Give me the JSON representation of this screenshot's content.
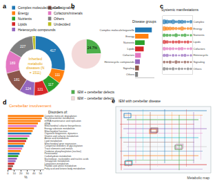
{
  "chart_data": [
    {
      "type": "pie",
      "title": "Inherited metabolic diseases (N = 1511)",
      "annotations": [
        "a"
      ],
      "categories": [
        "Complex molecule/organelle",
        "Energy",
        "Nutrients",
        "Lipids",
        "Heterocyclic compounds",
        "Cell signaling",
        "Cofactors/minerals",
        "Others",
        "Undecided"
      ],
      "values": [
        417,
        111,
        117,
        121,
        124,
        181,
        189,
        227,
        24
      ],
      "colors": [
        "#1f77b4",
        "#ff7f0e",
        "#2ca02c",
        "#d62728",
        "#9467bd",
        "#8c564b",
        "#e377c2",
        "#7f7f7f",
        "#bcbd22"
      ],
      "data_labels": true,
      "legend": "top"
    },
    {
      "type": "pie",
      "annotations": [
        "b"
      ],
      "categories": [
        "IEM + cerebellar defects",
        "IEM − cerebellar defects"
      ],
      "values": [
        24.7,
        75.3
      ],
      "value_labels": [
        "24.7%",
        null
      ],
      "colors": [
        "#4daf4a",
        "#f3d9d9"
      ],
      "data_labels": true,
      "legend": "bottom"
    },
    {
      "type": "bar",
      "title": "Disease groups",
      "orientation": "horizontal",
      "categories": [
        "Complex molecule/organelle",
        "Energy",
        "Nutrients",
        "Lipids",
        "Cofactors",
        "Heterocyclic compounds",
        "Signaling",
        "Others"
      ],
      "values": [
        35,
        28,
        20,
        18,
        12,
        10,
        8,
        6
      ],
      "colors": [
        "#1f77b4",
        "#ff7f0e",
        "#2ca02c",
        "#d62728",
        "#e377c2",
        "#9467bd",
        "#8c564b",
        "#7f7f7f"
      ],
      "xlim": [
        0,
        40
      ],
      "tick_labels": "y"
    },
    {
      "type": "scatter",
      "title": "Systemic manifestations",
      "annotations": [
        "c"
      ],
      "marker": "circle",
      "x": [
        1,
        2,
        3,
        4,
        5,
        6,
        7,
        8,
        9,
        10
      ],
      "xlim": [
        0.5,
        10.5
      ],
      "tick_labels": "y",
      "series": [
        {
          "name": "Complex",
          "color": "#1f77b4",
          "values": [
            60,
            45,
            30,
            50,
            20,
            35,
            40,
            25,
            15,
            30
          ]
        },
        {
          "name": "Energy",
          "color": "#ff7f0e",
          "values": [
            55,
            40,
            35,
            30,
            25,
            20,
            45,
            15,
            20,
            25
          ]
        },
        {
          "name": "Nutrients",
          "color": "#2ca02c",
          "values": [
            30,
            25,
            20,
            15,
            35,
            10,
            20,
            30,
            10,
            15
          ]
        },
        {
          "name": "Lipids",
          "color": "#d62728",
          "values": [
            40,
            30,
            15,
            25,
            20,
            30,
            15,
            20,
            25,
            10
          ]
        },
        {
          "name": "Cofactors",
          "color": "#e377c2",
          "values": [
            35,
            20,
            25,
            20,
            15,
            25,
            30,
            10,
            15,
            20
          ]
        },
        {
          "name": "Heterocyclic",
          "color": "#9467bd",
          "values": [
            25,
            30,
            10,
            20,
            15,
            10,
            20,
            25,
            10,
            15
          ]
        },
        {
          "name": "Signaling",
          "color": "#8c564b",
          "values": [
            20,
            15,
            25,
            10,
            30,
            15,
            10,
            20,
            15,
            10
          ]
        },
        {
          "name": "Others",
          "color": "#7f7f7f",
          "values": [
            30,
            20,
            15,
            25,
            10,
            20,
            15,
            10,
            20,
            15
          ]
        }
      ]
    },
    {
      "type": "bar",
      "title": "Cerebellar involvement",
      "subtitle": "Disorders of:",
      "annotations": [
        "d"
      ],
      "orientation": "horizontal",
      "xlabel": "%",
      "categories": [
        "Complex molecule degradation",
        "Neurotransmitter metabolism",
        "mRNA maintenance and replication",
        "tRNA",
        "Mitochondrial cofactor biosynthesis",
        "Energy substrate metabolism",
        "Mitochondrial function",
        "Organelle biogenesis, dynamics",
        "Vitamin and cofactor metabolism",
        "Amino acid metabolism",
        "Lipid metabolism",
        "Mitochondrial gene expression",
        "Congenital disorders of glycosylation",
        "Trace elements and metals",
        "Oxidative phosphorylation (nuclear)",
        "Peroxisomal",
        "Carbohydrate metabolism",
        "Nucleobase, nucleotides and nucleic acids",
        "Tetrapyrrole metabolism",
        "Lipoprotein metabolism",
        "Peptide and amine metabolism",
        "Fatty acid and ketone body metabolism"
      ],
      "values": [
        55,
        52,
        50,
        46,
        44,
        40,
        38,
        36,
        33,
        30,
        28,
        26,
        24,
        22,
        20,
        18,
        16,
        14,
        12,
        10,
        8,
        6
      ],
      "colors": [
        "#ff7f0e",
        "#ff7f0e",
        "#ff7f0e",
        "#ff7f0e",
        "#e377c2",
        "#ff7f0e",
        "#ff7f0e",
        "#1f77b4",
        "#e377c2",
        "#2ca02c",
        "#d62728",
        "#ff7f0e",
        "#1f77b4",
        "#e377c2",
        "#ff7f0e",
        "#1f77b4",
        "#2ca02c",
        "#9467bd",
        "#9467bd",
        "#d62728",
        "#8c564b",
        "#d62728"
      ],
      "xlim": [
        0,
        55
      ],
      "xticks": [
        0,
        10,
        20,
        30,
        40,
        50
      ]
    }
  ],
  "diagram": {
    "panel": "e",
    "title": "IEM with cerebellar disease",
    "label": "Metabolic map"
  }
}
